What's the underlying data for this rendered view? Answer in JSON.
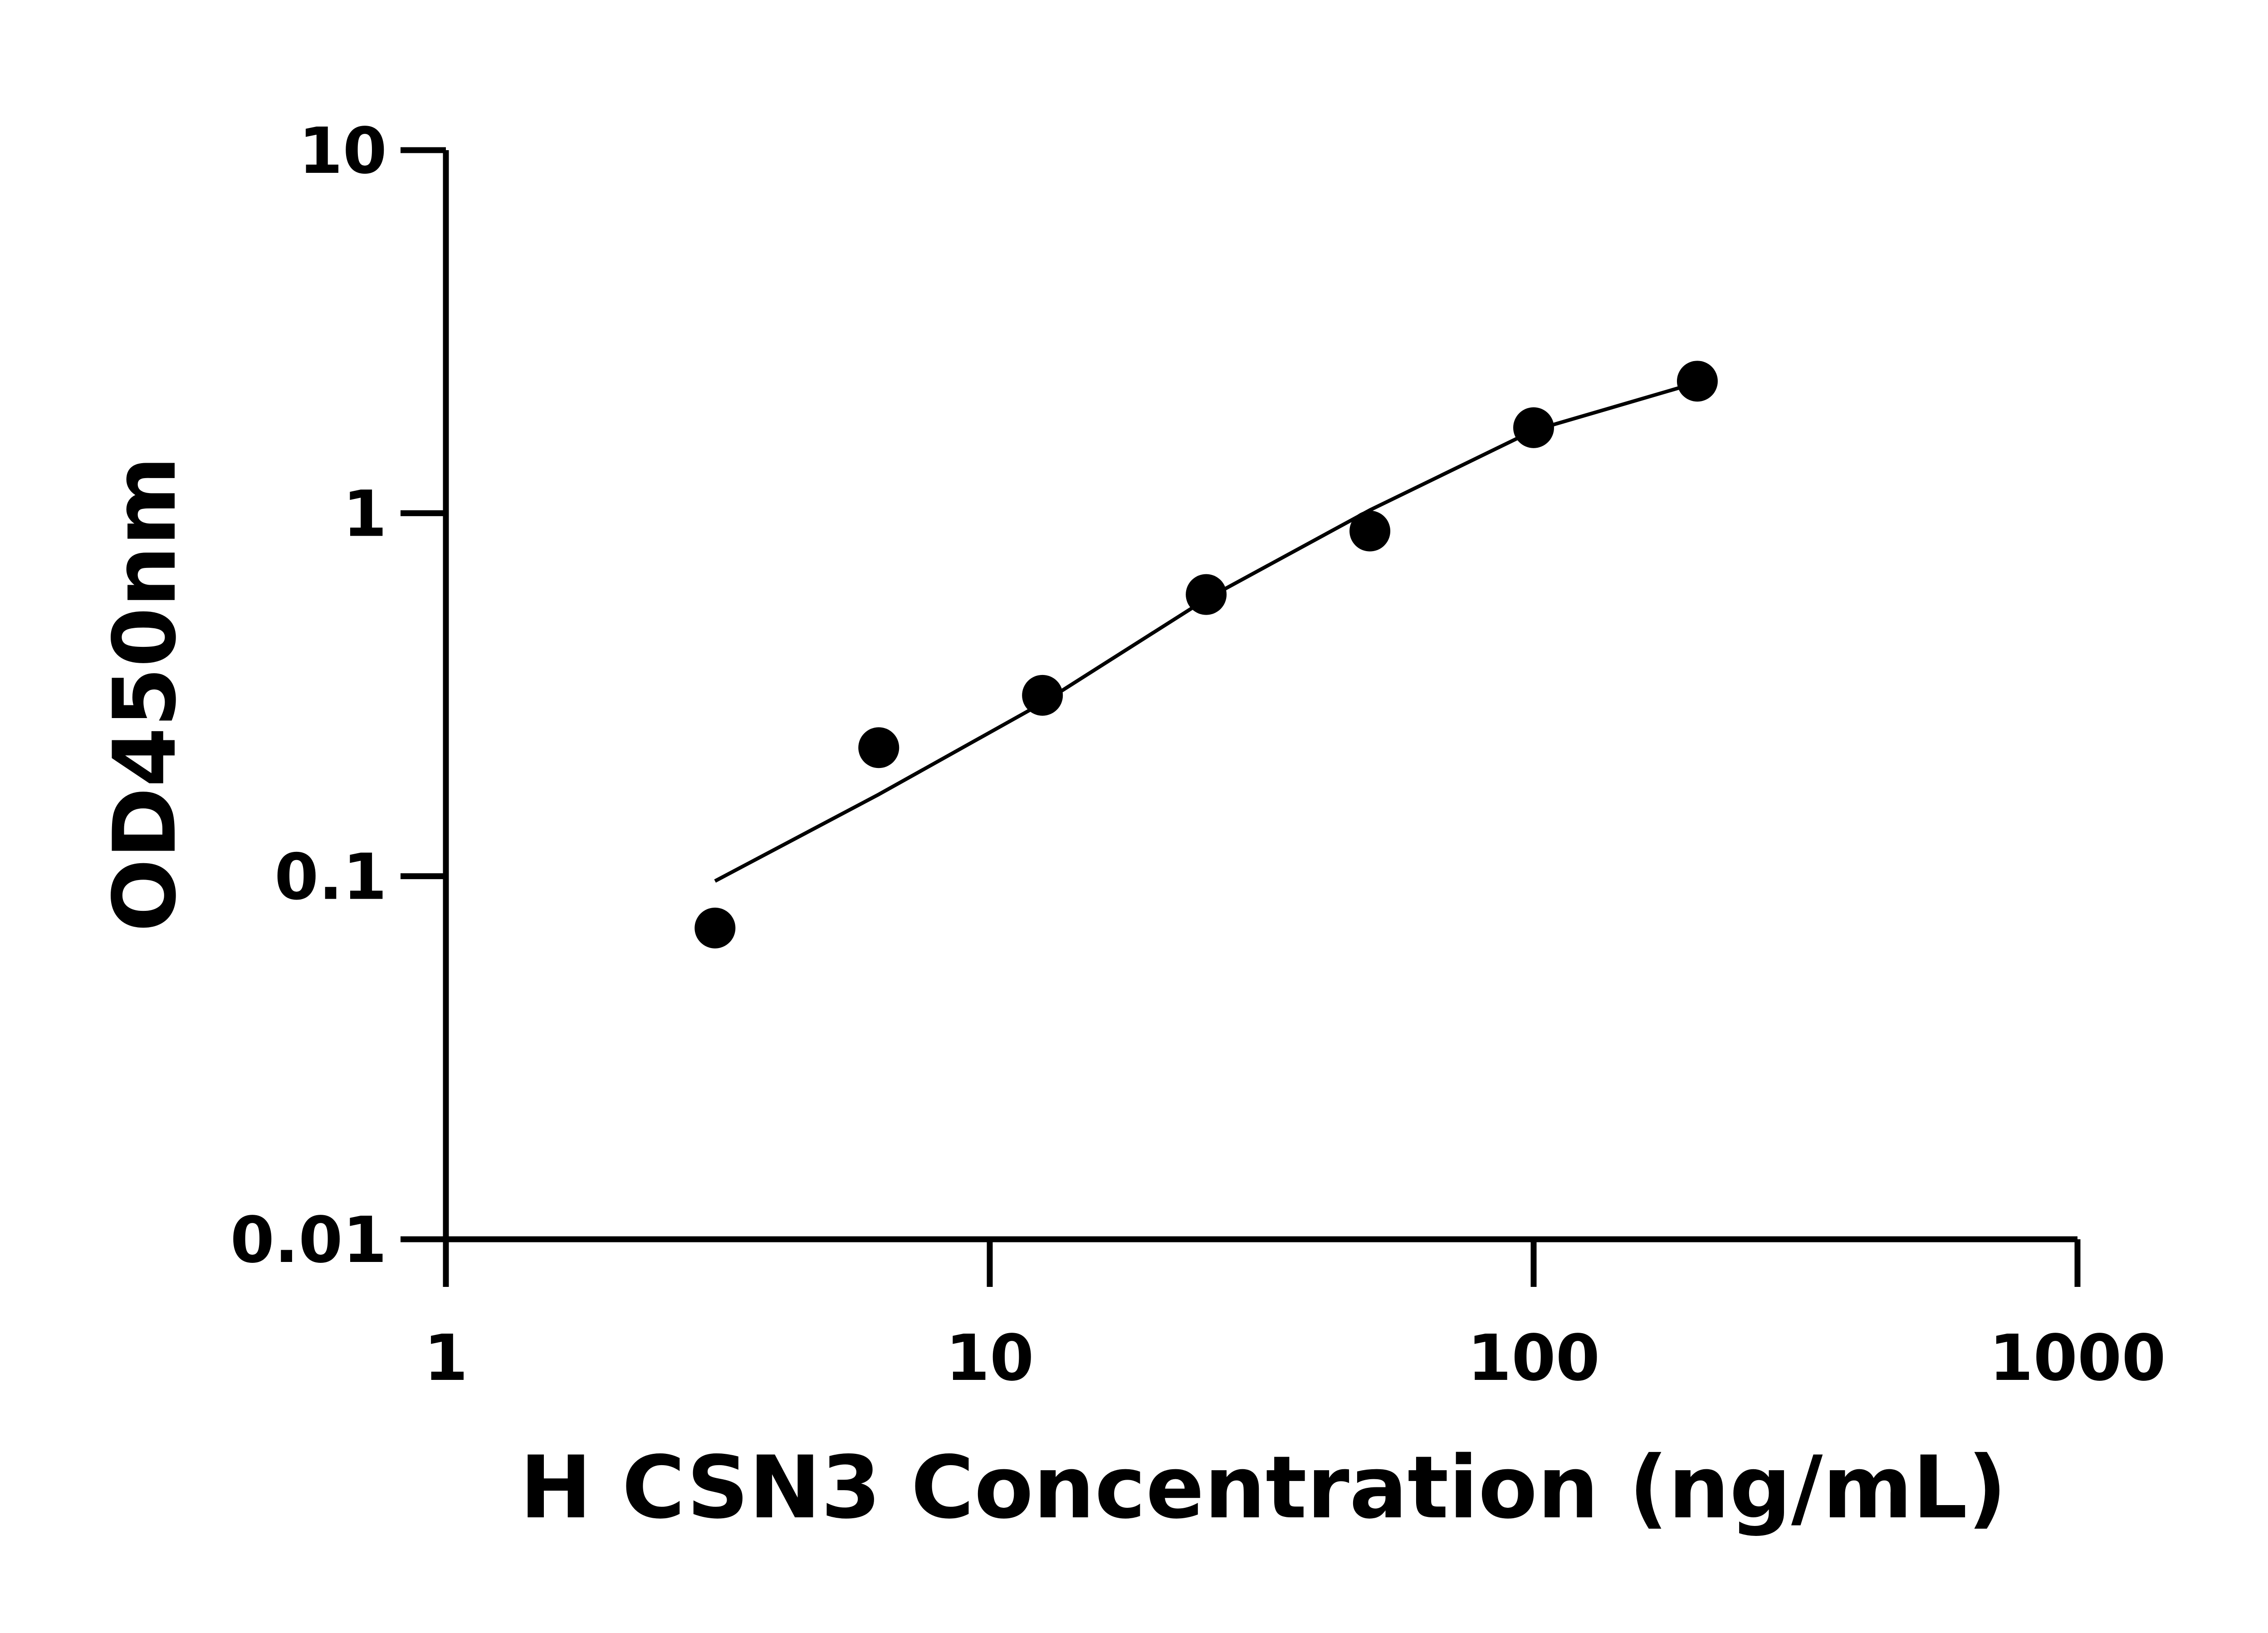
{
  "chart_data": {
    "type": "scatter",
    "title": "",
    "xlabel": "H CSN3 Concentration (ng/mL)",
    "ylabel": "OD450nm",
    "x_scale": "log",
    "y_scale": "log",
    "xlim": [
      1,
      1000
    ],
    "ylim": [
      0.01,
      10
    ],
    "x_ticks": [
      "1",
      "10",
      "100",
      "1000"
    ],
    "y_ticks": [
      "0.01",
      "0.1",
      "1",
      "10"
    ],
    "grid": false,
    "series": [
      {
        "type": "scatter",
        "x": [
          3.125,
          6.25,
          12.5,
          25,
          50,
          100,
          200
        ],
        "y": [
          0.072,
          0.226,
          0.315,
          0.597,
          0.893,
          1.72,
          2.31
        ],
        "color": "#000000"
      },
      {
        "type": "line",
        "x": [
          3.125,
          6.25,
          12.5,
          25,
          50,
          100,
          200
        ],
        "y": [
          0.097,
          0.168,
          0.3,
          0.58,
          1.02,
          1.69,
          2.29
        ],
        "color": "#000000"
      }
    ]
  }
}
